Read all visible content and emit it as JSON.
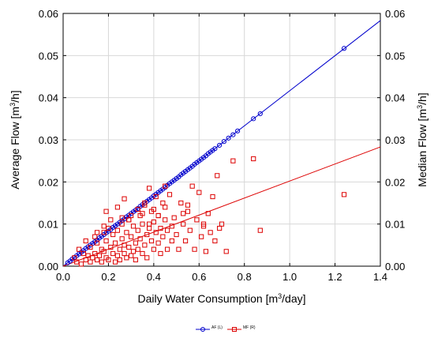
{
  "chart_data": {
    "type": "scatter",
    "xlabel_main": "Daily Water Consumption [m",
    "xlabel_sup": "3",
    "xlabel_tail": "/day]",
    "ylabel_left_main": "Average Flow [m",
    "ylabel_left_sup": "3",
    "ylabel_left_tail": "/h]",
    "ylabel_right_main": "Median Flow [m",
    "ylabel_right_sup": "3",
    "ylabel_right_tail": "/h]",
    "xlim": [
      0.0,
      1.4
    ],
    "ylim_left": [
      0.0,
      0.06
    ],
    "ylim_right": [
      0.0,
      0.06
    ],
    "x_ticks": [
      "0.0",
      "0.2",
      "0.4",
      "0.6",
      "0.8",
      "1.0",
      "1.2",
      "1.4"
    ],
    "y_ticks": [
      "0.00",
      "0.01",
      "0.02",
      "0.03",
      "0.04",
      "0.05",
      "0.06"
    ],
    "grid": true,
    "legend_placement": "bottom-center",
    "series": [
      {
        "name": "AF (L)",
        "color": "#0000cc",
        "marker": "circle",
        "axis": "left",
        "fit_line": {
          "x": [
            0.0,
            1.4
          ],
          "y": [
            0.0,
            0.0583
          ]
        },
        "x": [
          0.02,
          0.03,
          0.04,
          0.05,
          0.06,
          0.07,
          0.08,
          0.09,
          0.1,
          0.11,
          0.12,
          0.13,
          0.14,
          0.15,
          0.16,
          0.17,
          0.18,
          0.19,
          0.2,
          0.21,
          0.22,
          0.23,
          0.24,
          0.25,
          0.26,
          0.27,
          0.28,
          0.29,
          0.3,
          0.31,
          0.32,
          0.33,
          0.34,
          0.35,
          0.36,
          0.37,
          0.38,
          0.39,
          0.4,
          0.41,
          0.42,
          0.43,
          0.44,
          0.45,
          0.46,
          0.47,
          0.48,
          0.49,
          0.5,
          0.51,
          0.52,
          0.53,
          0.54,
          0.55,
          0.56,
          0.57,
          0.58,
          0.59,
          0.6,
          0.61,
          0.62,
          0.63,
          0.64,
          0.65,
          0.66,
          0.67,
          0.69,
          0.71,
          0.73,
          0.75,
          0.77,
          0.84,
          0.87,
          1.24
        ],
        "y": [
          0.0008,
          0.0012,
          0.0017,
          0.0021,
          0.0025,
          0.0029,
          0.0033,
          0.0037,
          0.0042,
          0.0046,
          0.005,
          0.0054,
          0.0058,
          0.0062,
          0.0067,
          0.0071,
          0.0075,
          0.0079,
          0.0083,
          0.0087,
          0.0092,
          0.0096,
          0.01,
          0.0104,
          0.0108,
          0.0112,
          0.0117,
          0.0121,
          0.0125,
          0.0129,
          0.0133,
          0.0137,
          0.0142,
          0.0146,
          0.015,
          0.0154,
          0.0158,
          0.0162,
          0.0167,
          0.0171,
          0.0175,
          0.0179,
          0.0183,
          0.0187,
          0.0192,
          0.0196,
          0.02,
          0.0204,
          0.0208,
          0.0212,
          0.0217,
          0.0221,
          0.0225,
          0.0229,
          0.0233,
          0.0237,
          0.0242,
          0.0246,
          0.025,
          0.0254,
          0.0258,
          0.0262,
          0.0267,
          0.0271,
          0.0275,
          0.0279,
          0.0287,
          0.0296,
          0.0304,
          0.0312,
          0.0321,
          0.035,
          0.0362,
          0.0517
        ]
      },
      {
        "name": "MF (R)",
        "color": "#dd0000",
        "marker": "square",
        "axis": "right",
        "fit_line": {
          "x": [
            0.0,
            1.4
          ],
          "y": [
            0.0,
            0.0283
          ]
        },
        "x": [
          0.05,
          0.06,
          0.07,
          0.08,
          0.09,
          0.1,
          0.1,
          0.11,
          0.12,
          0.12,
          0.13,
          0.14,
          0.14,
          0.15,
          0.15,
          0.16,
          0.17,
          0.17,
          0.18,
          0.18,
          0.19,
          0.19,
          0.2,
          0.2,
          0.21,
          0.22,
          0.22,
          0.23,
          0.23,
          0.24,
          0.24,
          0.25,
          0.25,
          0.26,
          0.26,
          0.27,
          0.27,
          0.28,
          0.28,
          0.29,
          0.29,
          0.3,
          0.3,
          0.31,
          0.31,
          0.32,
          0.32,
          0.33,
          0.33,
          0.34,
          0.34,
          0.35,
          0.35,
          0.36,
          0.36,
          0.37,
          0.37,
          0.38,
          0.38,
          0.39,
          0.39,
          0.4,
          0.4,
          0.41,
          0.41,
          0.42,
          0.42,
          0.43,
          0.43,
          0.44,
          0.44,
          0.45,
          0.45,
          0.46,
          0.46,
          0.47,
          0.48,
          0.48,
          0.49,
          0.5,
          0.51,
          0.52,
          0.53,
          0.54,
          0.55,
          0.56,
          0.57,
          0.58,
          0.59,
          0.6,
          0.61,
          0.62,
          0.63,
          0.64,
          0.65,
          0.66,
          0.67,
          0.68,
          0.7,
          0.72,
          0.75,
          0.84,
          0.87,
          1.24,
          0.19,
          0.21,
          0.24,
          0.27,
          0.3,
          0.33,
          0.36,
          0.38,
          0.42,
          0.45,
          0.53,
          0.55,
          0.62,
          0.69,
          0.15,
          0.18,
          0.26,
          0.29,
          0.35,
          0.4
        ],
        "y": [
          0.002,
          0.001,
          0.004,
          0.0005,
          0.003,
          0.0015,
          0.006,
          0.0025,
          0.001,
          0.0045,
          0.002,
          0.007,
          0.003,
          0.0015,
          0.0055,
          0.0025,
          0.004,
          0.001,
          0.008,
          0.0035,
          0.002,
          0.006,
          0.0015,
          0.009,
          0.0045,
          0.003,
          0.0075,
          0.001,
          0.0055,
          0.0025,
          0.0085,
          0.004,
          0.0015,
          0.01,
          0.0065,
          0.003,
          0.005,
          0.002,
          0.008,
          0.011,
          0.0045,
          0.0025,
          0.007,
          0.0035,
          0.0095,
          0.0055,
          0.0015,
          0.0085,
          0.004,
          0.012,
          0.0065,
          0.003,
          0.01,
          0.005,
          0.0145,
          0.0075,
          0.002,
          0.0185,
          0.009,
          0.006,
          0.013,
          0.004,
          0.0105,
          0.008,
          0.0165,
          0.0055,
          0.012,
          0.009,
          0.003,
          0.015,
          0.007,
          0.011,
          0.019,
          0.0085,
          0.004,
          0.017,
          0.0095,
          0.006,
          0.0115,
          0.0075,
          0.004,
          0.015,
          0.01,
          0.006,
          0.013,
          0.0085,
          0.019,
          0.004,
          0.011,
          0.0175,
          0.007,
          0.0095,
          0.0035,
          0.0125,
          0.008,
          0.0165,
          0.006,
          0.0215,
          0.01,
          0.0035,
          0.025,
          0.0255,
          0.0085,
          0.017,
          0.013,
          0.011,
          0.014,
          0.016,
          0.012,
          0.0135,
          0.015,
          0.01,
          0.012,
          0.014,
          0.0125,
          0.0145,
          0.01,
          0.009,
          0.008,
          0.0095,
          0.0115,
          0.011,
          0.0125,
          0.0135
        ]
      }
    ]
  }
}
